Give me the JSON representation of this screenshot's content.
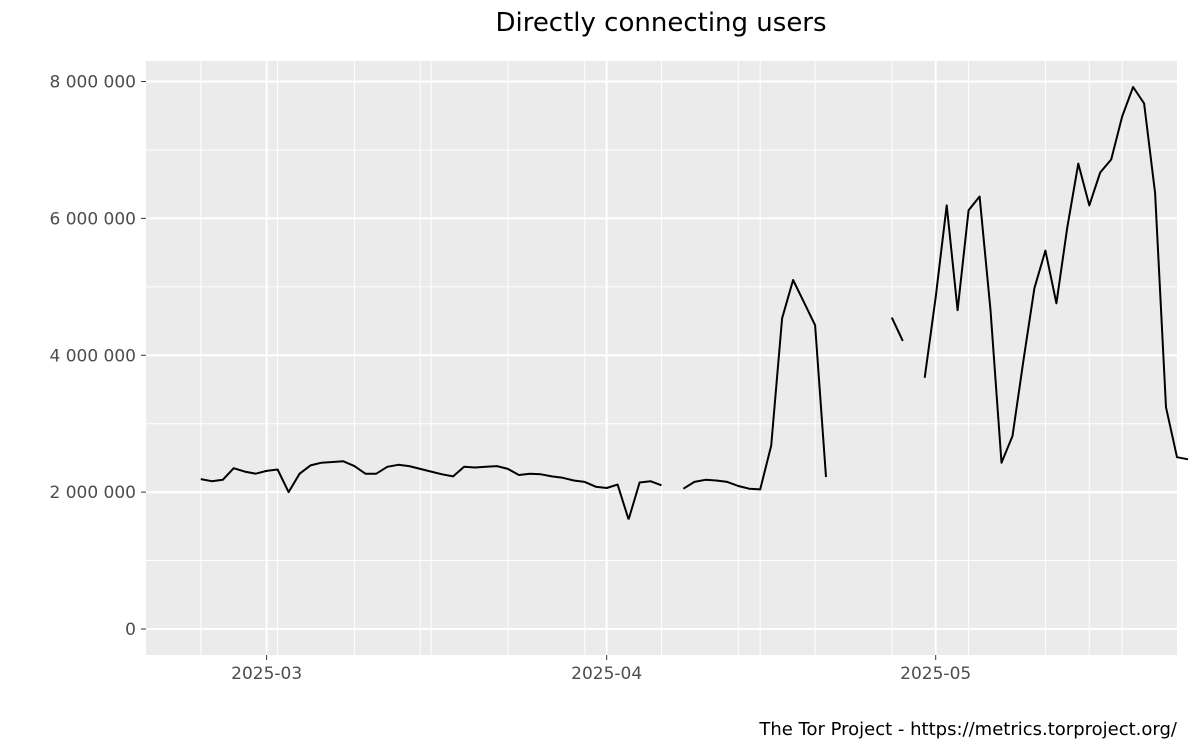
{
  "chart_data": {
    "type": "line",
    "title": "Directly connecting users",
    "caption": "The Tor Project - https://metrics.torproject.org/",
    "xlabel": "",
    "ylabel": "",
    "grid": true,
    "legend": "none",
    "xlim": [
      "2025-02-18",
      "2025-05-23"
    ],
    "ylim": [
      -380000,
      8300000
    ],
    "x_ticks": [
      {
        "date": "2025-03-01",
        "label": "2025-03"
      },
      {
        "date": "2025-04-01",
        "label": "2025-04"
      },
      {
        "date": "2025-05-01",
        "label": "2025-05"
      }
    ],
    "x_minor_ticks": [
      "2025-02-15",
      "2025-03-15",
      "2025-04-15",
      "2025-05-15"
    ],
    "y_ticks": [
      {
        "value": 0,
        "label": "0"
      },
      {
        "value": 2000000,
        "label": "2 000 000"
      },
      {
        "value": 4000000,
        "label": "4 000 000"
      },
      {
        "value": 6000000,
        "label": "6 000 000"
      },
      {
        "value": 8000000,
        "label": "8 000 000"
      }
    ],
    "y_minor_ticks": [
      1000000,
      3000000,
      5000000,
      7000000
    ],
    "colors": {
      "panel": "#ebebeb",
      "grid": "#ffffff",
      "line": "#000000",
      "tick_text": "#4d4d4d"
    },
    "series": [
      {
        "segments": [
          {
            "x": [
              "2025-02-23",
              "2025-02-24",
              "2025-02-25",
              "2025-02-26",
              "2025-02-27",
              "2025-02-28",
              "2025-03-01",
              "2025-03-02",
              "2025-03-03",
              "2025-03-04",
              "2025-03-05",
              "2025-03-06",
              "2025-03-07",
              "2025-03-08",
              "2025-03-09",
              "2025-03-10",
              "2025-03-11",
              "2025-03-12",
              "2025-03-13",
              "2025-03-14",
              "2025-03-15",
              "2025-03-16",
              "2025-03-17",
              "2025-03-18",
              "2025-03-19",
              "2025-03-20",
              "2025-03-21",
              "2025-03-22",
              "2025-03-23",
              "2025-03-24",
              "2025-03-25",
              "2025-03-26",
              "2025-03-27",
              "2025-03-28",
              "2025-03-29",
              "2025-03-30",
              "2025-03-31",
              "2025-04-01",
              "2025-04-02",
              "2025-04-03"
            ],
            "y": [
              2190000,
              2160000,
              2180000,
              2350000,
              2300000,
              2270000,
              2310000,
              2330000,
              2000000,
              2270000,
              2390000,
              2430000,
              2440000,
              2450000,
              2380000,
              2270000,
              2270000,
              2370000,
              2400000,
              2380000,
              2340000,
              2300000,
              2260000,
              2230000,
              2370000,
              2360000,
              2370000,
              2380000,
              2340000,
              2250000,
              2270000,
              2260000,
              2230000,
              2210000,
              2170000,
              2150000,
              2080000,
              2060000,
              2110000,
              1600000
            ]
          },
          {
            "x": [
              "2025-04-03",
              "2025-04-04",
              "2025-04-05",
              "2025-04-06"
            ],
            "y": [
              1600000,
              2140000,
              2160000,
              2100000
            ]
          },
          {
            "x": [
              "2025-04-08",
              "2025-04-09",
              "2025-04-10",
              "2025-04-11",
              "2025-04-12",
              "2025-04-13",
              "2025-04-14",
              "2025-04-15",
              "2025-04-16",
              "2025-04-17",
              "2025-04-18",
              "2025-04-19",
              "2025-04-20",
              "2025-04-21"
            ],
            "y": [
              2050000,
              2150000,
              2180000,
              2170000,
              2150000,
              2090000,
              2050000,
              2040000,
              2680000,
              4540000,
              5100000,
              4770000,
              4440000,
              2220000
            ]
          },
          {
            "x": [
              "2025-04-27",
              "2025-04-28"
            ],
            "y": [
              4550000,
              4210000
            ]
          },
          {
            "x": [
              "2025-04-30",
              "2025-05-01",
              "2025-05-02",
              "2025-05-03",
              "2025-05-04",
              "2025-05-05",
              "2025-05-06",
              "2025-05-07",
              "2025-05-08",
              "2025-05-09",
              "2025-05-10",
              "2025-05-11",
              "2025-05-12",
              "2025-05-13",
              "2025-05-14",
              "2025-05-15",
              "2025-05-16",
              "2025-05-17",
              "2025-05-18",
              "2025-05-19",
              "2025-05-20",
              "2025-05-21",
              "2025-05-22",
              "2025-05-23",
              "2025-05-24"
            ],
            "y": [
              3670000,
              4850000,
              6190000,
              4660000,
              6120000,
              6320000,
              4660000,
              2430000,
              2820000,
              3920000,
              4980000,
              5530000,
              4760000,
              5870000,
              6800000,
              6190000,
              6670000,
              6860000,
              7490000,
              7920000,
              7680000,
              6370000,
              3240000,
              2510000,
              2480000
            ]
          }
        ]
      }
    ]
  }
}
